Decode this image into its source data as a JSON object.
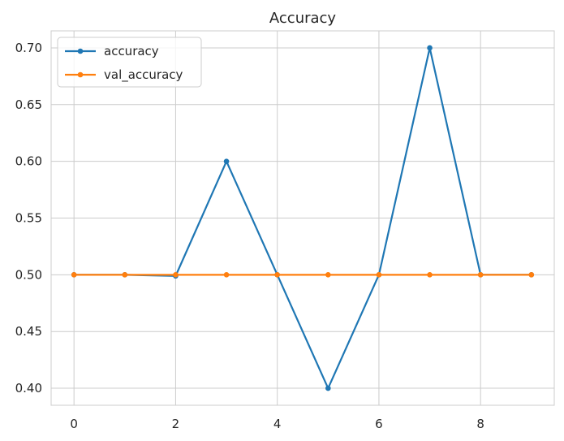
{
  "chart_data": {
    "type": "line",
    "title": "Accuracy",
    "xlabel": "",
    "ylabel": "",
    "x": [
      0,
      1,
      2,
      3,
      4,
      5,
      6,
      7,
      8,
      9
    ],
    "xlim": [
      -0.45,
      9.45
    ],
    "ylim": [
      0.385,
      0.715
    ],
    "xticks": [
      0,
      2,
      4,
      6,
      8
    ],
    "yticks": [
      0.4,
      0.45,
      0.5,
      0.55,
      0.6,
      0.65,
      0.7
    ],
    "xtick_labels": [
      "0",
      "2",
      "4",
      "6",
      "8"
    ],
    "ytick_labels": [
      "0.40",
      "0.45",
      "0.50",
      "0.55",
      "0.60",
      "0.65",
      "0.70"
    ],
    "grid": true,
    "legend": "upper-left",
    "series": [
      {
        "name": "accuracy",
        "color": "#1f77b4",
        "marker": "circle",
        "values": [
          0.5,
          0.5,
          0.499,
          0.6,
          0.5,
          0.4,
          0.5,
          0.7,
          0.5,
          0.5
        ]
      },
      {
        "name": "val_accuracy",
        "color": "#ff7f0e",
        "marker": "circle",
        "values": [
          0.5,
          0.5,
          0.5,
          0.5,
          0.5,
          0.5,
          0.5,
          0.5,
          0.5,
          0.5
        ]
      }
    ]
  }
}
